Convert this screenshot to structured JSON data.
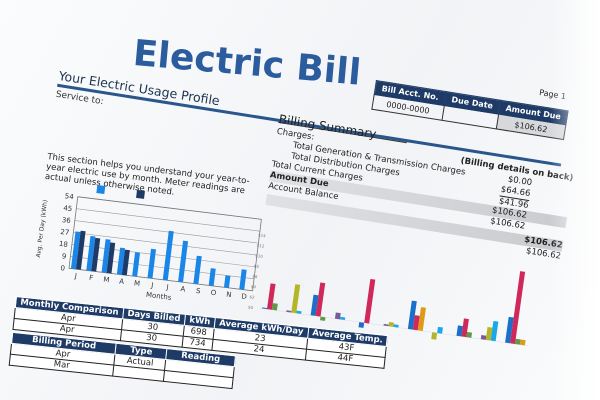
{
  "title": "Electric Bill",
  "usage_profile": {
    "heading": "Your Electric Usage Profile",
    "service_to": "Service to:"
  },
  "account": {
    "headers": [
      "Bill Acct. No.",
      "Due Date",
      "Amount Due"
    ],
    "values": [
      "0000-0000",
      "",
      "$106.62"
    ],
    "page": "Page 1"
  },
  "billing_summary": {
    "heading": "Billing Summary",
    "note": "(Billing details on back)",
    "charges_label": "Charges:",
    "rows": [
      {
        "label": "Total Generation & Transmission Charges",
        "value": "$0.00"
      },
      {
        "label": "Total Distribution Charges",
        "value": "$64.66"
      },
      {
        "label": "Total Current Charges",
        "value": "$41.96"
      },
      {
        "label": "Amount Due",
        "value": "$106.62"
      },
      {
        "label": "Account Balance",
        "value": "$106.62"
      }
    ],
    "highlight_value": "$106.62",
    "final_value": "$106.62"
  },
  "description": "This section helps you understand your year-to-year electric use by month.  Meter readings are actual unless otherwise noted.",
  "chart_data": [
    {
      "type": "bar",
      "ylabel": "Avg. Per Day (kWh)",
      "xlabel": "Months",
      "ylim": [
        0,
        54
      ],
      "yticks": [
        0,
        9,
        18,
        27,
        36,
        45,
        54
      ],
      "categories": [
        "J",
        "F",
        "M",
        "A",
        "M",
        "J",
        "J",
        "A",
        "S",
        "O",
        "N",
        "D"
      ],
      "colors": [
        "#1a86e8",
        "#1e3a66"
      ],
      "series": [
        {
          "values": [
            28,
            26,
            25,
            20,
            18,
            22,
            37,
            31,
            21,
            13,
            9,
            15
          ]
        },
        {
          "values": [
            29,
            25,
            23,
            19,
            null,
            null,
            null,
            null,
            null,
            null,
            null,
            null
          ]
        }
      ]
    },
    {
      "type": "bar",
      "ylim": [
        -2,
        14
      ],
      "yticks": [
        "$0",
        "$2",
        "$4",
        "$6",
        "$8",
        "$10",
        "$12",
        "$14"
      ],
      "groups": [
        [
          [
            "#1a70c8",
            0.2
          ],
          [
            "#d0285a",
            5
          ],
          [
            "#5e9a48",
            1.3
          ]
        ],
        [
          [
            "#7a5a98",
            0.3
          ],
          [
            "#b5b528",
            5.5
          ],
          [
            "#1aa8e8",
            0.5
          ]
        ],
        [
          [
            "#1a70c8",
            4
          ],
          [
            "#d0285a",
            6.5
          ],
          [
            "#5e9a48",
            -0.7
          ]
        ],
        [
          [
            "#7a5a98",
            1.2
          ],
          [
            "#1aa8e8",
            0.5
          ]
        ],
        [
          [
            "#1a70c8",
            -1
          ],
          [
            "#d0285a",
            8.5
          ]
        ],
        [
          [
            "#7a5a98",
            0.3
          ],
          [
            "#b5b528",
            0.8
          ],
          [
            "#1aa8e8",
            0.5
          ]
        ],
        [
          [
            "#1a70c8",
            5.5
          ],
          [
            "#d0285a",
            2.8
          ],
          [
            "#e09a18",
            4.5
          ]
        ],
        [
          [
            "#b5b528",
            -1.3
          ],
          [
            "#1aa8e8",
            1.2
          ]
        ],
        [
          [
            "#1a70c8",
            2
          ],
          [
            "#d0285a",
            3.5
          ],
          [
            "#5e9a48",
            1
          ]
        ],
        [
          [
            "#7a5a98",
            0.8
          ],
          [
            "#b5b528",
            2.5
          ],
          [
            "#1aa8e8",
            3.8
          ]
        ],
        [
          [
            "#1a70c8",
            5
          ],
          [
            "#d0285a",
            14
          ],
          [
            "#5e9a48",
            1
          ],
          [
            "#e09a18",
            1
          ]
        ]
      ]
    }
  ],
  "monthly_comparison": {
    "headers": [
      "Monthly Comparison",
      "Days Billed",
      "kWh",
      "Average kWh/Day",
      "Average Temp."
    ],
    "rows": [
      [
        "Apr",
        "30",
        "698",
        "23",
        "43F"
      ],
      [
        "Apr",
        "30",
        "734",
        "24",
        "44F"
      ]
    ]
  },
  "billing_period": {
    "headers": [
      "Billing Period",
      "Type",
      "Reading"
    ],
    "rows": [
      [
        "Apr",
        "Actual",
        ""
      ],
      [
        "Mar",
        "",
        ""
      ]
    ]
  }
}
